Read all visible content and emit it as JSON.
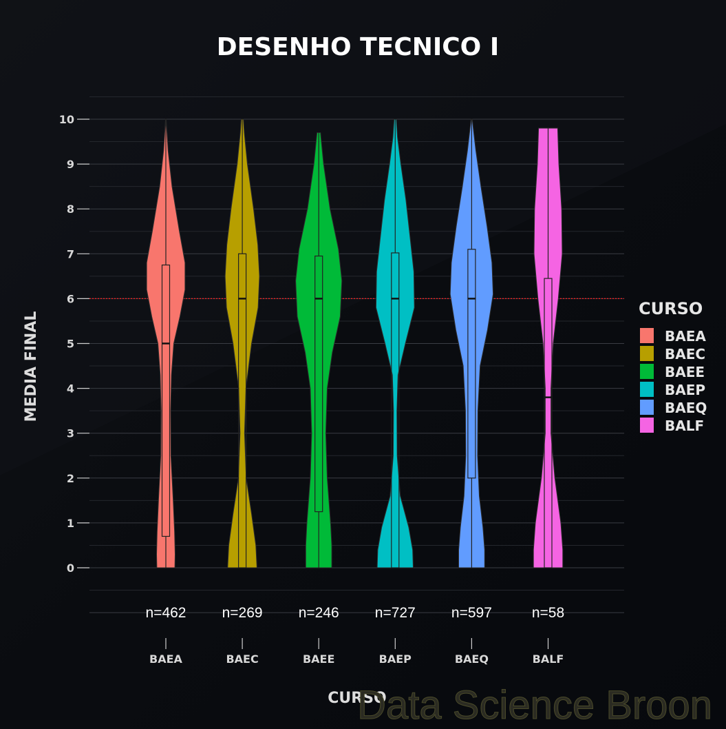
{
  "chart_data": {
    "type": "violin",
    "title": "DESENHO TECNICO I",
    "xlabel": "CURSO",
    "ylabel": "MEDIA FINAL",
    "ylim": [
      -1,
      10.5
    ],
    "yticks": [
      0,
      1,
      2,
      3,
      4,
      5,
      6,
      7,
      8,
      9,
      10
    ],
    "reference_line": {
      "y": 6,
      "color": "#ff2020",
      "style": "dotted"
    },
    "legend": {
      "title": "CURSO",
      "position": "right"
    },
    "grid": true,
    "categories": [
      "BAEA",
      "BAEC",
      "BAEE",
      "BAEP",
      "BAEQ",
      "BALF"
    ],
    "counts": [
      "n=462",
      "n=269",
      "n=246",
      "n=727",
      "n=597",
      "n=58"
    ],
    "series": [
      {
        "name": "BAEA",
        "color": "#f8766d",
        "box": {
          "q1": 0.7,
          "median": 5.0,
          "q3": 6.75,
          "whisker_low": 0,
          "whisker_high": 10
        },
        "density": [
          [
            0,
            0.32
          ],
          [
            0.3,
            0.33
          ],
          [
            0.8,
            0.31
          ],
          [
            1.5,
            0.26
          ],
          [
            2.5,
            0.18
          ],
          [
            3.5,
            0.17
          ],
          [
            4.3,
            0.2
          ],
          [
            5,
            0.28
          ],
          [
            5.6,
            0.5
          ],
          [
            6.2,
            0.68
          ],
          [
            6.8,
            0.68
          ],
          [
            7.5,
            0.48
          ],
          [
            8.5,
            0.22
          ],
          [
            9.3,
            0.08
          ],
          [
            10,
            0.01
          ]
        ]
      },
      {
        "name": "BAEC",
        "color": "#b79f00",
        "box": {
          "q1": 0,
          "median": 6.0,
          "q3": 7.0,
          "whisker_low": 0,
          "whisker_high": 10
        },
        "density": [
          [
            0,
            0.52
          ],
          [
            0.5,
            0.48
          ],
          [
            1.2,
            0.33
          ],
          [
            2,
            0.14
          ],
          [
            3,
            0.08
          ],
          [
            4,
            0.13
          ],
          [
            5,
            0.33
          ],
          [
            5.8,
            0.56
          ],
          [
            6.5,
            0.61
          ],
          [
            7.2,
            0.55
          ],
          [
            8,
            0.4
          ],
          [
            9,
            0.18
          ],
          [
            9.7,
            0.07
          ],
          [
            10,
            0.04
          ]
        ]
      },
      {
        "name": "BAEE",
        "color": "#00ba38",
        "box": {
          "q1": 1.25,
          "median": 6.0,
          "q3": 6.95,
          "whisker_low": 0,
          "whisker_high": 9.7
        },
        "density": [
          [
            0,
            0.46
          ],
          [
            0.5,
            0.46
          ],
          [
            1,
            0.42
          ],
          [
            2,
            0.3
          ],
          [
            3,
            0.25
          ],
          [
            4,
            0.3
          ],
          [
            4.8,
            0.48
          ],
          [
            5.6,
            0.76
          ],
          [
            6.4,
            0.82
          ],
          [
            7.1,
            0.7
          ],
          [
            8,
            0.4
          ],
          [
            9,
            0.17
          ],
          [
            9.7,
            0.06
          ]
        ]
      },
      {
        "name": "BAEP",
        "color": "#00bfc4",
        "box": {
          "q1": 0,
          "median": 6.0,
          "q3": 7.02,
          "whisker_low": 0,
          "whisker_high": 10
        },
        "density": [
          [
            0,
            0.64
          ],
          [
            0.4,
            0.62
          ],
          [
            0.9,
            0.48
          ],
          [
            1.6,
            0.18
          ],
          [
            2.5,
            0.07
          ],
          [
            3.5,
            0.06
          ],
          [
            4.3,
            0.1
          ],
          [
            5,
            0.36
          ],
          [
            5.8,
            0.68
          ],
          [
            6.6,
            0.66
          ],
          [
            7.3,
            0.54
          ],
          [
            8.2,
            0.38
          ],
          [
            9,
            0.2
          ],
          [
            9.6,
            0.08
          ],
          [
            10,
            0.04
          ]
        ]
      },
      {
        "name": "BAEQ",
        "color": "#619cff",
        "box": {
          "q1": 2.0,
          "median": 6.0,
          "q3": 7.1,
          "whisker_low": 0,
          "whisker_high": 10
        },
        "density": [
          [
            0,
            0.46
          ],
          [
            0.4,
            0.46
          ],
          [
            0.9,
            0.4
          ],
          [
            1.6,
            0.27
          ],
          [
            2.5,
            0.21
          ],
          [
            3.5,
            0.22
          ],
          [
            4.5,
            0.3
          ],
          [
            5.3,
            0.56
          ],
          [
            6.1,
            0.76
          ],
          [
            6.8,
            0.72
          ],
          [
            7.6,
            0.55
          ],
          [
            8.5,
            0.33
          ],
          [
            9.3,
            0.15
          ],
          [
            10,
            0.02
          ]
        ]
      },
      {
        "name": "BALF",
        "color": "#f564e3",
        "box": {
          "q1": 0,
          "median": 3.8,
          "q3": 6.45,
          "whisker_low": 0,
          "whisker_high": 9.8
        },
        "density": [
          [
            0,
            0.52
          ],
          [
            0.4,
            0.52
          ],
          [
            1,
            0.45
          ],
          [
            2,
            0.24
          ],
          [
            3,
            0.1
          ],
          [
            4,
            0.1
          ],
          [
            5,
            0.18
          ],
          [
            6,
            0.36
          ],
          [
            7,
            0.5
          ],
          [
            8,
            0.48
          ],
          [
            9,
            0.38
          ],
          [
            9.8,
            0.34
          ]
        ]
      }
    ]
  },
  "watermark": "Data Science Broon"
}
